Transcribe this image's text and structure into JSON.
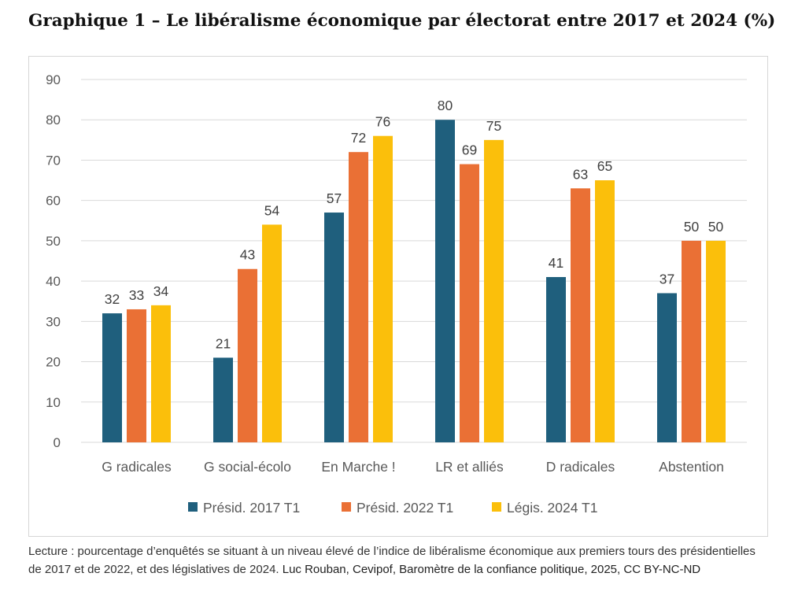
{
  "title": "Graphique 1 – Le libéralisme économique par électorat entre 2017 et 2024 (%)",
  "caption": {
    "lecture": "Lecture : pourcentage d’enquêtés se situant à un niveau élevé de l’indice de libéralisme économique aux premiers tours des présidentielles de 2017 et de 2022, et des législatives de 2024.",
    "source": "Luc Rouban, Cevipof, Baromètre de la confiance politique, 2025, CC BY-NC-ND"
  },
  "chart_data": {
    "type": "bar",
    "title": "",
    "xlabel": "",
    "ylabel": "",
    "ylim": [
      0,
      90
    ],
    "yticks": [
      0,
      10,
      20,
      30,
      40,
      50,
      60,
      70,
      80,
      90
    ],
    "grid": true,
    "legend_position": "bottom",
    "categories": [
      "G radicales",
      "G social-écolo",
      "En Marche !",
      "LR et alliés",
      "D radicales",
      "Abstention"
    ],
    "series": [
      {
        "name": "Présid. 2017 T1",
        "color": "#1f5f7d",
        "values": [
          32,
          21,
          57,
          80,
          41,
          37
        ]
      },
      {
        "name": "Présid. 2022 T1",
        "color": "#ea7035",
        "values": [
          33,
          43,
          72,
          69,
          63,
          50
        ]
      },
      {
        "name": "Légis. 2024 T1",
        "color": "#fbbf0b",
        "values": [
          34,
          54,
          76,
          75,
          65,
          50
        ]
      }
    ]
  }
}
